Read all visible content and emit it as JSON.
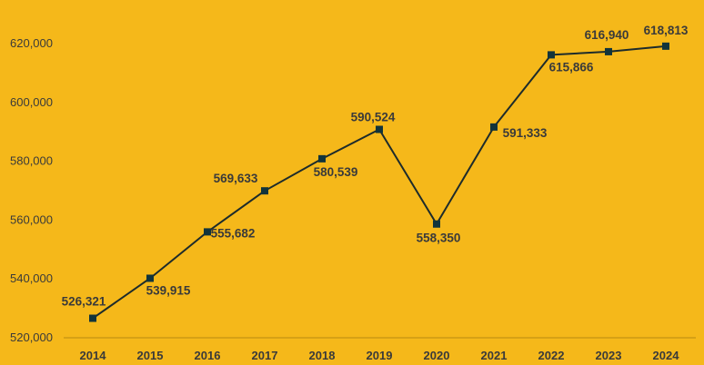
{
  "colors": {
    "background": "#F5B81A",
    "line": "#1d2b2b",
    "marker": "#12343b",
    "text": "#3a3a3a"
  },
  "chart_data": {
    "type": "line",
    "title": "",
    "xlabel": "",
    "ylabel": "",
    "categories": [
      "2014",
      "2015",
      "2016",
      "2017",
      "2018",
      "2019",
      "2020",
      "2021",
      "2022",
      "2023",
      "2024"
    ],
    "series": [
      {
        "values": [
          526321,
          539915,
          555682,
          569633,
          580539,
          590524,
          558350,
          591333,
          615866,
          616940,
          618813
        ],
        "labels": [
          "526,321",
          "539,915",
          "555,682",
          "569,633",
          "580,539",
          "590,524",
          "558,350",
          "591,333",
          "615,866",
          "616,940",
          "618,813"
        ],
        "marker": "square"
      }
    ],
    "ylim": [
      520000,
      620000
    ],
    "yticks": [
      520000,
      540000,
      560000,
      580000,
      600000,
      620000
    ],
    "ytick_labels": [
      "520,000",
      "540,000",
      "560,000",
      "580,000",
      "600,000",
      "620,000"
    ],
    "grid": false,
    "legend": "none"
  }
}
